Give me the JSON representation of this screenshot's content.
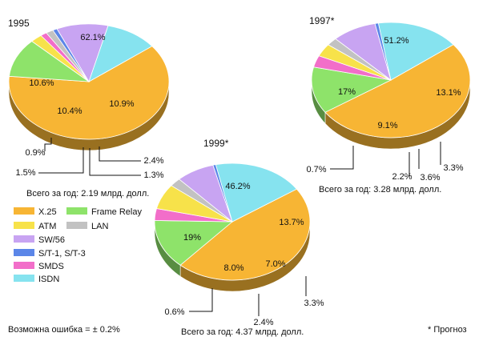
{
  "colors": {
    "X.25": "#f7b534",
    "Frame Relay": "#8ee36a",
    "ATM": "#f7e24a",
    "LAN": "#c2c2c2",
    "SW/56": "#c8a4f2",
    "S/T-1, S/T-3": "#5b86e8",
    "SMDS": "#f26ec9",
    "ISDN": "#86e3ef"
  },
  "legend": [
    {
      "key": "X.25",
      "label": "X.25"
    },
    {
      "key": "Frame Relay",
      "label": "Frame Relay"
    },
    {
      "key": "ATM",
      "label": "ATM"
    },
    {
      "key": "LAN",
      "label": "LAN"
    },
    {
      "key": "SW/56",
      "label": "SW/56"
    },
    {
      "key": "S/T-1, S/T-3",
      "label": "S/T-1, S/T-3"
    },
    {
      "key": "SMDS",
      "label": "SMDS"
    },
    {
      "key": "ISDN",
      "label": "ISDN"
    }
  ],
  "footnote_error": "Возможна ошибка = ± 0.2%",
  "footnote_forecast": "* Прогноз",
  "chart_data": [
    {
      "type": "pie",
      "title": "1995",
      "total": "Всего за год: 2.19 млрд. долл.",
      "slices": [
        {
          "category": "X.25",
          "value": 62.1,
          "label": "62.1%"
        },
        {
          "category": "Frame Relay",
          "value": 10.9,
          "label": "10.9%"
        },
        {
          "category": "ATM",
          "value": 2.4,
          "label": "2.4%"
        },
        {
          "category": "SMDS",
          "value": 1.3,
          "label": "1.3%"
        },
        {
          "category": "LAN",
          "value": 1.5,
          "label": "1.5%"
        },
        {
          "category": "S/T-1, S/T-3",
          "value": 0.9,
          "label": "0.9%"
        },
        {
          "category": "SW/56",
          "value": 10.4,
          "label": "10.4%"
        },
        {
          "category": "ISDN",
          "value": 10.6,
          "label": "10.6%"
        }
      ]
    },
    {
      "type": "pie",
      "title": "1997*",
      "total": "Всего за год: 3.28 млрд. долл.",
      "slices": [
        {
          "category": "X.25",
          "value": 51.2,
          "label": "51.2%"
        },
        {
          "category": "Frame Relay",
          "value": 13.1,
          "label": "13.1%"
        },
        {
          "category": "SMDS",
          "value": 3.3,
          "label": "3.3%"
        },
        {
          "category": "ATM",
          "value": 3.6,
          "label": "3.6%"
        },
        {
          "category": "LAN",
          "value": 2.2,
          "label": "2.2%"
        },
        {
          "category": "SW/56",
          "value": 9.1,
          "label": "9.1%"
        },
        {
          "category": "S/T-1, S/T-3",
          "value": 0.7,
          "label": "0.7%"
        },
        {
          "category": "ISDN",
          "value": 17,
          "label": "17%"
        }
      ]
    },
    {
      "type": "pie",
      "title": "1999*",
      "total": "Всего за год: 4.37 млрд. долл.",
      "slices": [
        {
          "category": "X.25",
          "value": 46.2,
          "label": "46.2%"
        },
        {
          "category": "Frame Relay",
          "value": 13.7,
          "label": "13.7%"
        },
        {
          "category": "SMDS",
          "value": 3.3,
          "label": "3.3%"
        },
        {
          "category": "ATM",
          "value": 7.0,
          "label": "7.0%"
        },
        {
          "category": "LAN",
          "value": 2.4,
          "label": "2.4%"
        },
        {
          "category": "SW/56",
          "value": 8.0,
          "label": "8.0%"
        },
        {
          "category": "S/T-1, S/T-3",
          "value": 0.6,
          "label": "0.6%"
        },
        {
          "category": "ISDN",
          "value": 19,
          "label": "19%"
        }
      ]
    }
  ]
}
